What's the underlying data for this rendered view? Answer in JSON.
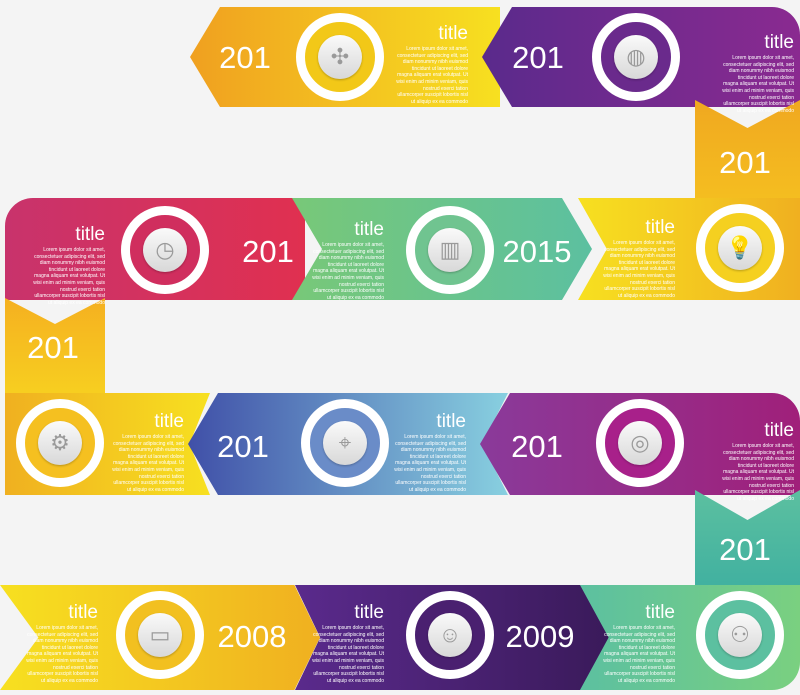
{
  "body_text": "Lorem ipsum dolor sit amet, consectetuer adipiscing elit, sed diam nonummy nibh euismod tincidunt ut laoreet dolore magna aliquam erat volutpat. Ut wisi enim ad minim veniam, quis nostrud exerci tation ullamcorper suscipit lobortis nisl ut aliquip ex ea commodo",
  "colors": {
    "yellow": "#f5d316",
    "orange": "#f0a820",
    "purple": "#6a2a8c",
    "magenta": "#a02a8a",
    "red": "#d8305a",
    "pink": "#c8336c",
    "green": "#6cc08a",
    "teal": "#5cc0a0",
    "blue": "#4a60b0",
    "lightblue": "#80c8e0"
  },
  "steps": [
    {
      "year": "201",
      "title": "title",
      "icon": "puzzle-icon",
      "glyph": "✣"
    },
    {
      "year": "201",
      "title": "title",
      "icon": "globe-icon",
      "glyph": "◍"
    },
    {
      "year": "201",
      "title": "",
      "icon": "",
      "glyph": ""
    },
    {
      "year": "",
      "title": "title",
      "icon": "lightbulb-icon",
      "glyph": "💡"
    },
    {
      "year": "2015",
      "title": "title",
      "icon": "bar-chart-icon",
      "glyph": "▥"
    },
    {
      "year": "201",
      "title": "title",
      "icon": "clock-icon",
      "glyph": "◷"
    },
    {
      "year": "201",
      "title": "",
      "icon": "",
      "glyph": ""
    },
    {
      "year": "",
      "title": "title",
      "icon": "gear-icon",
      "glyph": "⚙"
    },
    {
      "year": "201",
      "title": "title",
      "icon": "crosshair-icon",
      "glyph": "⌖"
    },
    {
      "year": "201",
      "title": "title",
      "icon": "target-icon",
      "glyph": "◎"
    },
    {
      "year": "201",
      "title": "",
      "icon": "",
      "glyph": ""
    },
    {
      "year": "",
      "title": "title",
      "icon": "presentation-icon",
      "glyph": "⚇"
    },
    {
      "year": "2009",
      "title": "title",
      "icon": "user-icon",
      "glyph": "☺"
    },
    {
      "year": "2008",
      "title": "title",
      "icon": "monitor-icon",
      "glyph": "▭"
    }
  ]
}
